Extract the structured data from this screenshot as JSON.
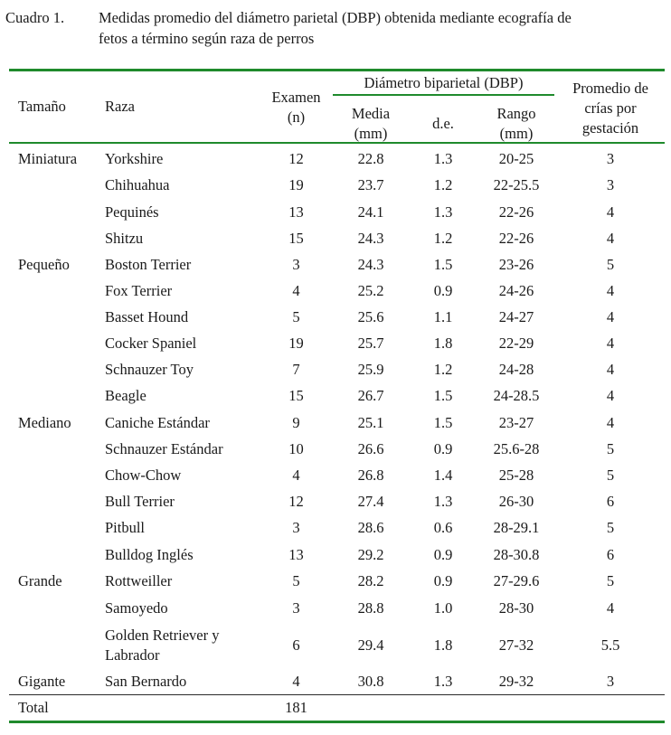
{
  "caption": {
    "label": "Cuadro 1.",
    "line1": "Medidas promedio del diámetro parietal (DBP) obtenida mediante ecografía de",
    "line2": "fetos a término según raza de perros"
  },
  "headers": {
    "tamano": "Tamaño",
    "raza": "Raza",
    "examen_1": "Examen",
    "examen_2": "(n)",
    "dbp_group": "Diámetro biparietal (DBP)",
    "media_1": "Media",
    "media_2": "(mm)",
    "de": "d.e.",
    "rango_1": "Rango",
    "rango_2": "(mm)",
    "promedio_1": "Promedio de",
    "promedio_2": "crías por",
    "promedio_3": "gestación"
  },
  "rows": [
    {
      "tamano": "Miniatura",
      "raza": "Yorkshire",
      "n": "12",
      "media": "22.8",
      "de": "1.3",
      "rango": "20-25",
      "crias": "3"
    },
    {
      "tamano": "",
      "raza": "Chihuahua",
      "n": "19",
      "media": "23.7",
      "de": "1.2",
      "rango": "22-25.5",
      "crias": "3"
    },
    {
      "tamano": "",
      "raza": "Pequinés",
      "n": "13",
      "media": "24.1",
      "de": "1.3",
      "rango": "22-26",
      "crias": "4"
    },
    {
      "tamano": "",
      "raza": "Shitzu",
      "n": "15",
      "media": "24.3",
      "de": "1.2",
      "rango": "22-26",
      "crias": "4"
    },
    {
      "tamano": "Pequeño",
      "raza": "Boston Terrier",
      "n": "3",
      "media": "24.3",
      "de": "1.5",
      "rango": "23-26",
      "crias": "5"
    },
    {
      "tamano": "",
      "raza": "Fox Terrier",
      "n": "4",
      "media": "25.2",
      "de": "0.9",
      "rango": "24-26",
      "crias": "4"
    },
    {
      "tamano": "",
      "raza": "Basset Hound",
      "n": "5",
      "media": "25.6",
      "de": "1.1",
      "rango": "24-27",
      "crias": "4"
    },
    {
      "tamano": "",
      "raza": "Cocker Spaniel",
      "n": "19",
      "media": "25.7",
      "de": "1.8",
      "rango": "22-29",
      "crias": "4"
    },
    {
      "tamano": "",
      "raza": "Schnauzer Toy",
      "n": "7",
      "media": "25.9",
      "de": "1.2",
      "rango": "24-28",
      "crias": "4"
    },
    {
      "tamano": "",
      "raza": "Beagle",
      "n": "15",
      "media": "26.7",
      "de": "1.5",
      "rango": "24-28.5",
      "crias": "4"
    },
    {
      "tamano": "Mediano",
      "raza": "Caniche Estándar",
      "n": "9",
      "media": "25.1",
      "de": "1.5",
      "rango": "23-27",
      "crias": "4"
    },
    {
      "tamano": "",
      "raza": "Schnauzer Estándar",
      "n": "10",
      "media": "26.6",
      "de": "0.9",
      "rango": "25.6-28",
      "crias": "5"
    },
    {
      "tamano": "",
      "raza": "Chow-Chow",
      "n": "4",
      "media": "26.8",
      "de": "1.4",
      "rango": "25-28",
      "crias": "5"
    },
    {
      "tamano": "",
      "raza": "Bull Terrier",
      "n": "12",
      "media": "27.4",
      "de": "1.3",
      "rango": "26-30",
      "crias": "6"
    },
    {
      "tamano": "",
      "raza": "Pitbull",
      "n": "3",
      "media": "28.6",
      "de": "0.6",
      "rango": "28-29.1",
      "crias": "5"
    },
    {
      "tamano": "",
      "raza": "Bulldog Inglés",
      "n": "13",
      "media": "29.2",
      "de": "0.9",
      "rango": "28-30.8",
      "crias": "6"
    },
    {
      "tamano": "Grande",
      "raza": "Rottweiller",
      "n": "5",
      "media": "28.2",
      "de": "0.9",
      "rango": "27-29.6",
      "crias": "5"
    },
    {
      "tamano": "",
      "raza": "Samoyedo",
      "n": "3",
      "media": "28.8",
      "de": "1.0",
      "rango": "28-30",
      "crias": "4"
    },
    {
      "tamano": "",
      "raza": "Golden Retriever y Labrador",
      "raza_1": "Golden Retriever y",
      "raza_2": "Labrador",
      "n": "6",
      "media": "29.4",
      "de": "1.8",
      "rango": "27-32",
      "crias": "5.5"
    },
    {
      "tamano": "Gigante",
      "raza": "San Bernardo",
      "n": "4",
      "media": "30.8",
      "de": "1.3",
      "rango": "29-32",
      "crias": "3"
    }
  ],
  "total": {
    "label": "Total",
    "n": "181"
  },
  "colors": {
    "rule": "#1f8a2c",
    "text": "#1a1a1a"
  }
}
